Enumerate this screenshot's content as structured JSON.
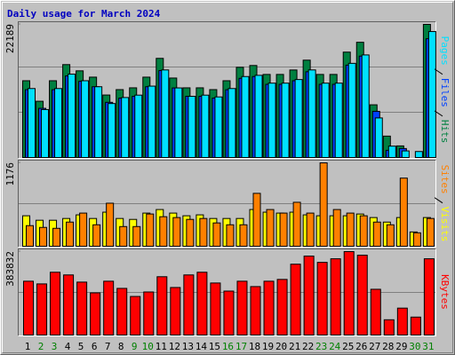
{
  "chart_data": [
    {
      "type": "bar",
      "title": "Daily usage for March 2024",
      "series": [
        {
          "name": "Hits",
          "color": "#008040",
          "values": [
            12800,
            9380,
            12800,
            15490,
            14450,
            13400,
            10420,
            11320,
            11620,
            13400,
            16530,
            13250,
            11620,
            11620,
            11320,
            12800,
            15040,
            15340,
            13850,
            13850,
            14590,
            16230,
            13850,
            13850,
            17570,
            19210,
            8790,
            3570,
            1940,
            0,
            22189
          ]
        },
        {
          "name": "Files",
          "color": "#0040ff",
          "values": [
            11300,
            8200,
            11300,
            13600,
            12700,
            11800,
            9200,
            9900,
            10200,
            11800,
            14500,
            11600,
            10200,
            10200,
            9900,
            11300,
            13200,
            13500,
            12200,
            12200,
            12800,
            14300,
            12200,
            12200,
            15400,
            16900,
            7700,
            1200,
            1500,
            0,
            19800
          ]
        },
        {
          "name": "Pages",
          "color": "#00e0ff",
          "values": [
            11500,
            8000,
            11500,
            13900,
            12800,
            11800,
            9000,
            10000,
            10400,
            11900,
            14600,
            11600,
            10200,
            10400,
            10100,
            11500,
            13500,
            13700,
            12400,
            12400,
            13000,
            14600,
            12400,
            12400,
            15700,
            17100,
            6600,
            1900,
            1100,
            1000,
            21000
          ]
        }
      ],
      "ylim": [
        0,
        22189
      ],
      "yticks": [
        22189
      ]
    },
    {
      "type": "bar",
      "series": [
        {
          "name": "Visits",
          "color": "#ffff00",
          "values": [
            430,
            367,
            367,
            392,
            443,
            392,
            481,
            392,
            379,
            468,
            518,
            468,
            430,
            443,
            392,
            392,
            392,
            518,
            481,
            468,
            481,
            443,
            430,
            430,
            430,
            455,
            405,
            341,
            405,
            202,
            405
          ]
        },
        {
          "name": "Sites",
          "color": "#ff8000",
          "values": [
            291,
            266,
            253,
            341,
            468,
            303,
            607,
            278,
            278,
            455,
            417,
            405,
            379,
            392,
            329,
            303,
            303,
            746,
            518,
            468,
            620,
            468,
            1176,
            518,
            468,
            430,
            341,
            303,
            961,
            190,
            392
          ]
        }
      ],
      "ylim": [
        0,
        1176
      ],
      "yticks": [
        1176
      ]
    },
    {
      "type": "bar",
      "categories": [
        "1",
        "2",
        "3",
        "4",
        "5",
        "6",
        "7",
        "8",
        "9",
        "10",
        "11",
        "12",
        "13",
        "14",
        "15",
        "16",
        "17",
        "18",
        "19",
        "20",
        "21",
        "22",
        "23",
        "24",
        "25",
        "26",
        "27",
        "28",
        "29",
        "30",
        "31"
      ],
      "category_colors": [
        "#000000",
        "#008000",
        "#008000",
        "#000000",
        "#000000",
        "#000000",
        "#000000",
        "#000000",
        "#008000",
        "#008000",
        "#000000",
        "#000000",
        "#000000",
        "#000000",
        "#000000",
        "#008000",
        "#008000",
        "#000000",
        "#000000",
        "#000000",
        "#000000",
        "#000000",
        "#008000",
        "#008000",
        "#000000",
        "#000000",
        "#000000",
        "#000000",
        "#000000",
        "#008000",
        "#008000"
      ],
      "series": [
        {
          "name": "KBytes",
          "color": "#ff0000",
          "values": [
            247600,
            235200,
            288900,
            276500,
            243500,
            194000,
            247600,
            214600,
            177500,
            198100,
            268300,
            218700,
            276500,
            288900,
            239400,
            202200,
            247600,
            222900,
            247600,
            255900,
            326000,
            363200,
            334300,
            350800,
            383832,
            367300,
            210500,
            70200,
            123800,
            82500,
            350800
          ]
        }
      ],
      "ylim": [
        0,
        383832
      ],
      "yticks": [
        383832
      ]
    }
  ]
}
